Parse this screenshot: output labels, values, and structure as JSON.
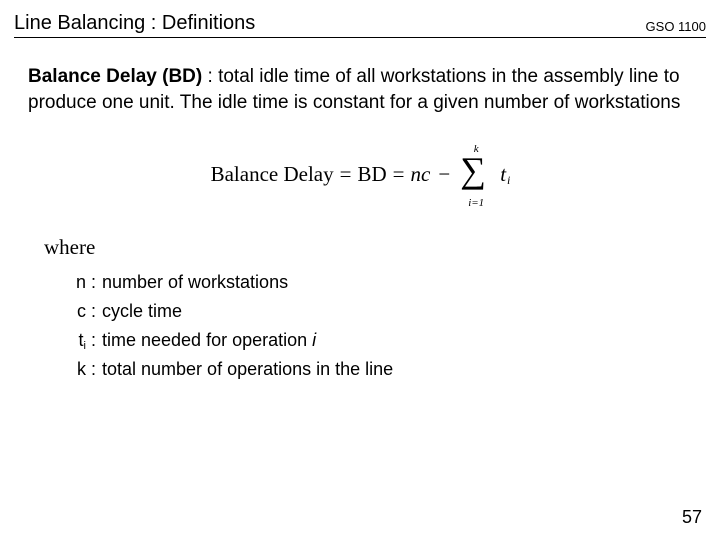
{
  "header": {
    "title": "Line Balancing : Definitions",
    "code": "GSO 1100"
  },
  "main": {
    "term": "Balance Delay (BD)",
    "definition_rest": " : total idle time of all workstations in the assembly line to produce one unit. The idle time is constant for a given number of workstations"
  },
  "formula": {
    "lhs": "Balance Delay",
    "eq1": "=",
    "mid": "BD",
    "eq2": "=",
    "nc": "nc",
    "minus": "−",
    "sum_top": "k",
    "sum_bottom": "i=1",
    "t": "t",
    "t_sub": "i"
  },
  "where_label": "where",
  "defs": [
    {
      "sym": "n :",
      "sub": "",
      "desc": "number of workstations",
      "ital": ""
    },
    {
      "sym": "c :",
      "sub": "",
      "desc": "cycle time",
      "ital": ""
    },
    {
      "sym": "t",
      "sub": "i",
      "desc": "time needed for operation ",
      "ital": "i"
    },
    {
      "sym": "k :",
      "sub": "",
      "desc": "total number of operations in the line",
      "ital": ""
    }
  ],
  "page_number": "57",
  "colors": {
    "text": "#000000",
    "background": "#ffffff",
    "rule": "#000000"
  }
}
